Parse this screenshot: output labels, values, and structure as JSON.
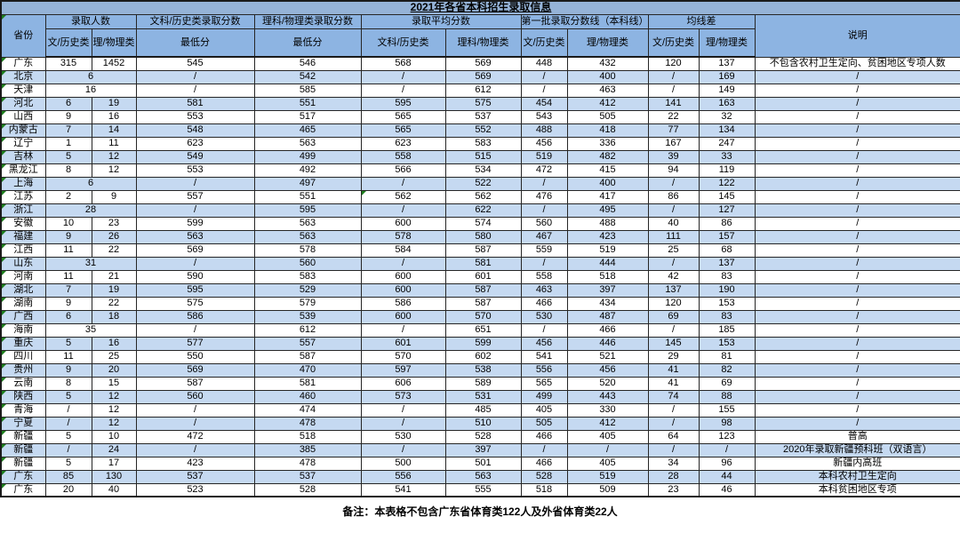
{
  "title": "2021年各省本科招生录取信息",
  "footer_note": "备注：本表格不包含广东省体育类122人及外省体育类22人",
  "colors": {
    "title_bg": "#95B3D7",
    "header_bg": "#8DB4E2",
    "stripe_bg": "#C5D9F1",
    "row_bg": "#FFFFFF",
    "flag": "#1E7E1E"
  },
  "header": {
    "province": "省份",
    "note": "说明",
    "groups": [
      {
        "label": "录取人数",
        "children": [
          "文/历史类",
          "理/物理类"
        ]
      },
      {
        "label": "文科/历史类录取分数",
        "children": [
          "最低分"
        ]
      },
      {
        "label": "理科/物理类录取分数",
        "children": [
          "最低分"
        ]
      },
      {
        "label": "录取平均分数",
        "children": [
          "文科/历史类",
          "理科/物理类"
        ]
      },
      {
        "label": "第一批录取分数线（本科线）",
        "children": [
          "文/历史类",
          "理/物理类"
        ]
      },
      {
        "label": "均线差",
        "children": [
          "文/历史类",
          "理/物理类"
        ]
      }
    ]
  },
  "rows": [
    {
      "p": "广东",
      "flag": true,
      "c": [
        "315",
        "1452",
        "545",
        "546",
        "568",
        "569",
        "448",
        "432",
        "120",
        "137"
      ],
      "note": "不包含农村卫生定向、贫困地区专项人数"
    },
    {
      "p": "北京",
      "flag": true,
      "merged": "6",
      "c": [
        "/",
        "542",
        "/",
        "569",
        "/",
        "400",
        "/",
        "169"
      ],
      "note": "/"
    },
    {
      "p": "天津",
      "flag": true,
      "merged": "16",
      "c": [
        "/",
        "585",
        "/",
        "612",
        "/",
        "463",
        "/",
        "149"
      ],
      "note": "/"
    },
    {
      "p": "河北",
      "flag": true,
      "c": [
        "6",
        "19",
        "581",
        "551",
        "595",
        "575",
        "454",
        "412",
        "141",
        "163"
      ],
      "note": "/"
    },
    {
      "p": "山西",
      "flag": true,
      "c": [
        "9",
        "16",
        "553",
        "517",
        "565",
        "537",
        "543",
        "505",
        "22",
        "32"
      ],
      "note": "/"
    },
    {
      "p": "内蒙古",
      "flag": true,
      "c": [
        "7",
        "14",
        "548",
        "465",
        "565",
        "552",
        "488",
        "418",
        "77",
        "134"
      ],
      "note": "/"
    },
    {
      "p": "辽宁",
      "flag": true,
      "c": [
        "1",
        "11",
        "623",
        "563",
        "623",
        "583",
        "456",
        "336",
        "167",
        "247"
      ],
      "note": "/"
    },
    {
      "p": "吉林",
      "flag": true,
      "c": [
        "5",
        "12",
        "549",
        "499",
        "558",
        "515",
        "519",
        "482",
        "39",
        "33"
      ],
      "note": "/"
    },
    {
      "p": "黑龙江",
      "flag": true,
      "c": [
        "8",
        "12",
        "553",
        "492",
        "566",
        "534",
        "472",
        "415",
        "94",
        "119"
      ],
      "note": "/"
    },
    {
      "p": "上海",
      "flag": true,
      "merged": "6",
      "c": [
        "/",
        "497",
        "/",
        "522",
        "/",
        "400",
        "/",
        "122"
      ],
      "note": "/"
    },
    {
      "p": "江苏",
      "flag": true,
      "c": [
        "2",
        "9",
        "557",
        "551",
        "562",
        "562",
        "476",
        "417",
        "86",
        "145"
      ],
      "flag_cells": [
        4
      ],
      "note": "/"
    },
    {
      "p": "浙江",
      "flag": true,
      "merged": "28",
      "c": [
        "/",
        "595",
        "/",
        "622",
        "/",
        "495",
        "/",
        "127"
      ],
      "note": "/"
    },
    {
      "p": "安徽",
      "flag": true,
      "c": [
        "10",
        "23",
        "599",
        "563",
        "600",
        "574",
        "560",
        "488",
        "40",
        "86"
      ],
      "note": "/"
    },
    {
      "p": "福建",
      "flag": true,
      "c": [
        "9",
        "26",
        "563",
        "563",
        "578",
        "580",
        "467",
        "423",
        "111",
        "157"
      ],
      "note": "/"
    },
    {
      "p": "江西",
      "flag": true,
      "c": [
        "11",
        "22",
        "569",
        "578",
        "584",
        "587",
        "559",
        "519",
        "25",
        "68"
      ],
      "note": "/"
    },
    {
      "p": "山东",
      "flag": true,
      "merged": "31",
      "c": [
        "/",
        "560",
        "/",
        "581",
        "/",
        "444",
        "/",
        "137"
      ],
      "note": "/"
    },
    {
      "p": "河南",
      "flag": true,
      "c": [
        "11",
        "21",
        "590",
        "583",
        "600",
        "601",
        "558",
        "518",
        "42",
        "83"
      ],
      "note": "/"
    },
    {
      "p": "湖北",
      "flag": true,
      "c": [
        "7",
        "19",
        "595",
        "529",
        "600",
        "587",
        "463",
        "397",
        "137",
        "190"
      ],
      "note": "/"
    },
    {
      "p": "湖南",
      "flag": true,
      "c": [
        "9",
        "22",
        "575",
        "579",
        "586",
        "587",
        "466",
        "434",
        "120",
        "153"
      ],
      "note": "/"
    },
    {
      "p": "广西",
      "flag": true,
      "c": [
        "6",
        "18",
        "586",
        "539",
        "600",
        "570",
        "530",
        "487",
        "69",
        "83"
      ],
      "note": "/"
    },
    {
      "p": "海南",
      "flag": true,
      "merged": "35",
      "c": [
        "/",
        "612",
        "/",
        "651",
        "/",
        "466",
        "/",
        "185"
      ],
      "note": "/"
    },
    {
      "p": "重庆",
      "flag": true,
      "c": [
        "5",
        "16",
        "577",
        "557",
        "601",
        "599",
        "456",
        "446",
        "145",
        "153"
      ],
      "note": "/"
    },
    {
      "p": "四川",
      "flag": true,
      "c": [
        "11",
        "25",
        "550",
        "587",
        "570",
        "602",
        "541",
        "521",
        "29",
        "81"
      ],
      "note": "/"
    },
    {
      "p": "贵州",
      "flag": true,
      "c": [
        "9",
        "20",
        "569",
        "470",
        "597",
        "538",
        "556",
        "456",
        "41",
        "82"
      ],
      "note": "/"
    },
    {
      "p": "云南",
      "flag": true,
      "c": [
        "8",
        "15",
        "587",
        "581",
        "606",
        "589",
        "565",
        "520",
        "41",
        "69"
      ],
      "note": "/"
    },
    {
      "p": "陕西",
      "flag": true,
      "c": [
        "5",
        "12",
        "560",
        "460",
        "573",
        "531",
        "499",
        "443",
        "74",
        "88"
      ],
      "note": "/"
    },
    {
      "p": "青海",
      "flag": true,
      "c": [
        "/",
        "12",
        "/",
        "474",
        "/",
        "485",
        "405",
        "330",
        "/",
        "155"
      ],
      "note": "/"
    },
    {
      "p": "宁夏",
      "flag": true,
      "c": [
        "/",
        "12",
        "/",
        "478",
        "/",
        "510",
        "505",
        "412",
        "/",
        "98"
      ],
      "note": "/"
    },
    {
      "p": "新疆",
      "flag": true,
      "c": [
        "5",
        "10",
        "472",
        "518",
        "530",
        "528",
        "466",
        "405",
        "64",
        "123"
      ],
      "note": "普高"
    },
    {
      "p": "新疆",
      "flag": true,
      "c": [
        "/",
        "24",
        "/",
        "385",
        "/",
        "397",
        "/",
        "/",
        "/",
        "/"
      ],
      "note": "2020年录取新疆预科班（双语言）"
    },
    {
      "p": "新疆",
      "flag": true,
      "c": [
        "5",
        "17",
        "423",
        "478",
        "500",
        "501",
        "466",
        "405",
        "34",
        "96"
      ],
      "note": "新疆内高班"
    },
    {
      "p": "广东",
      "flag": true,
      "c": [
        "85",
        "130",
        "537",
        "537",
        "556",
        "563",
        "528",
        "519",
        "28",
        "44"
      ],
      "note": "本科农村卫生定向"
    },
    {
      "p": "广东",
      "flag": true,
      "c": [
        "20",
        "40",
        "523",
        "528",
        "541",
        "555",
        "518",
        "509",
        "23",
        "46"
      ],
      "note": "本科贫困地区专项"
    }
  ]
}
